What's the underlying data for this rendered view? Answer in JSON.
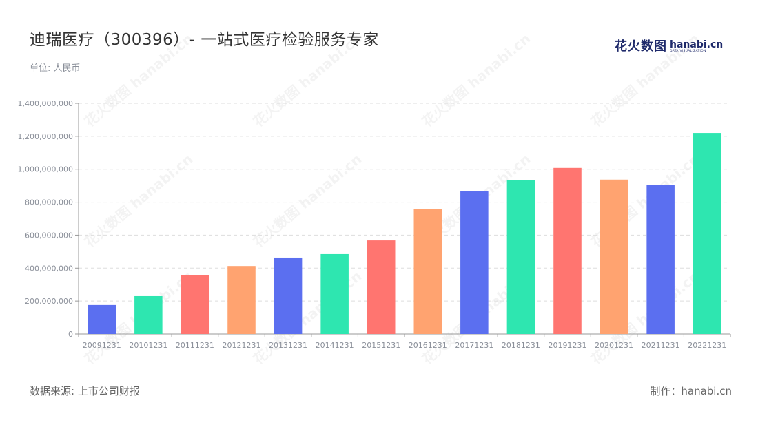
{
  "header": {
    "title": "迪瑞医疗（300396）- 一站式医疗检验服务专家",
    "unit": "单位: 人民币"
  },
  "logo": {
    "cn": "花火数图",
    "en": "hanabi.cn",
    "en_sub": "DATA VISUALIZATION"
  },
  "footer": {
    "source": "数据来源: 上市公司财报",
    "credit": "制作：hanabi.cn"
  },
  "watermark": "花火数图 hanabi.cn",
  "colors": {
    "palette": [
      "#5b6ff0",
      "#2ee6b0",
      "#ff7570",
      "#ffa370"
    ],
    "grid": "#dddddd",
    "axis": "#999999"
  },
  "chart_data": {
    "type": "bar",
    "categories": [
      "20091231",
      "20101231",
      "20111231",
      "20121231",
      "20131231",
      "20141231",
      "20151231",
      "20161231",
      "20171231",
      "20181231",
      "20191231",
      "20201231",
      "20211231",
      "20221231"
    ],
    "values": [
      176000000,
      230000000,
      358000000,
      413000000,
      464000000,
      485000000,
      568000000,
      758000000,
      867000000,
      933000000,
      1008000000,
      937000000,
      905000000,
      1220000000
    ],
    "ylim": [
      0,
      1400000000
    ],
    "yticks": [
      0,
      200000000,
      400000000,
      600000000,
      800000000,
      1000000000,
      1200000000,
      1400000000
    ],
    "ytick_labels": [
      "0",
      "200,000,000",
      "400,000,000",
      "600,000,000",
      "800,000,000",
      "1,000,000,000",
      "1,200,000,000",
      "1,400,000,000"
    ],
    "grid": true,
    "legend": "none"
  }
}
